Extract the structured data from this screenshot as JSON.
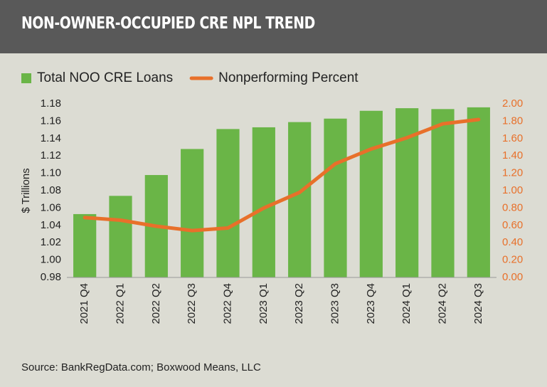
{
  "chart_data": {
    "type": "bar",
    "title": "NON-OWNER-OCCUPIED CRE NPL TREND",
    "y_label": "$ Trillions",
    "source": "Source: BankRegData.com; Boxwood Means, LLC",
    "categories": [
      "2021 Q4",
      "2022 Q1",
      "2022 Q2",
      "2022 Q3",
      "2022 Q4",
      "2023 Q1",
      "2023 Q2",
      "2023 Q3",
      "2023 Q4",
      "2024 Q1",
      "2024 Q2",
      "2024 Q3"
    ],
    "series": [
      {
        "name": "Total NOO CRE Loans",
        "type": "bar",
        "color": "#6ab547",
        "axis": "y",
        "values": [
          1.053,
          1.074,
          1.098,
          1.128,
          1.151,
          1.153,
          1.159,
          1.163,
          1.172,
          1.175,
          1.174,
          1.176
        ]
      },
      {
        "name": "Nonperforming Percent",
        "type": "line",
        "color": "#e8702a",
        "axis": "y2",
        "values": [
          0.69,
          0.66,
          0.59,
          0.54,
          0.57,
          0.8,
          0.98,
          1.31,
          1.48,
          1.61,
          1.77,
          1.82
        ]
      }
    ],
    "ylim": [
      0.98,
      1.18
    ],
    "yticks": [
      {
        "value": 0.98,
        "label": "0.98"
      },
      {
        "value": 1.0,
        "label": "1.00"
      },
      {
        "value": 1.02,
        "label": "1.02"
      },
      {
        "value": 1.04,
        "label": "1.04"
      },
      {
        "value": 1.06,
        "label": "1.06"
      },
      {
        "value": 1.08,
        "label": "1.08"
      },
      {
        "value": 1.1,
        "label": "1.10"
      },
      {
        "value": 1.12,
        "label": "1.12"
      },
      {
        "value": 1.14,
        "label": "1.14"
      },
      {
        "value": 1.16,
        "label": "1.16"
      },
      {
        "value": 1.18,
        "label": "1.18"
      }
    ],
    "y2lim": [
      0,
      2
    ],
    "y2ticks": [
      {
        "value": 0,
        "label": "0.00"
      },
      {
        "value": 0.2,
        "label": "0.20"
      },
      {
        "value": 0.4,
        "label": "0.40"
      },
      {
        "value": 0.6,
        "label": "0.60"
      },
      {
        "value": 0.8,
        "label": "0.80"
      },
      {
        "value": 1.0,
        "label": "1.00"
      },
      {
        "value": 1.2,
        "label": "1.20"
      },
      {
        "value": 1.4,
        "label": "1.40"
      },
      {
        "value": 1.6,
        "label": "1.60"
      },
      {
        "value": 1.8,
        "label": "1.80"
      },
      {
        "value": 2.0,
        "label": "2.00"
      }
    ],
    "y2tick_color": "#e8702a",
    "grid": false
  }
}
